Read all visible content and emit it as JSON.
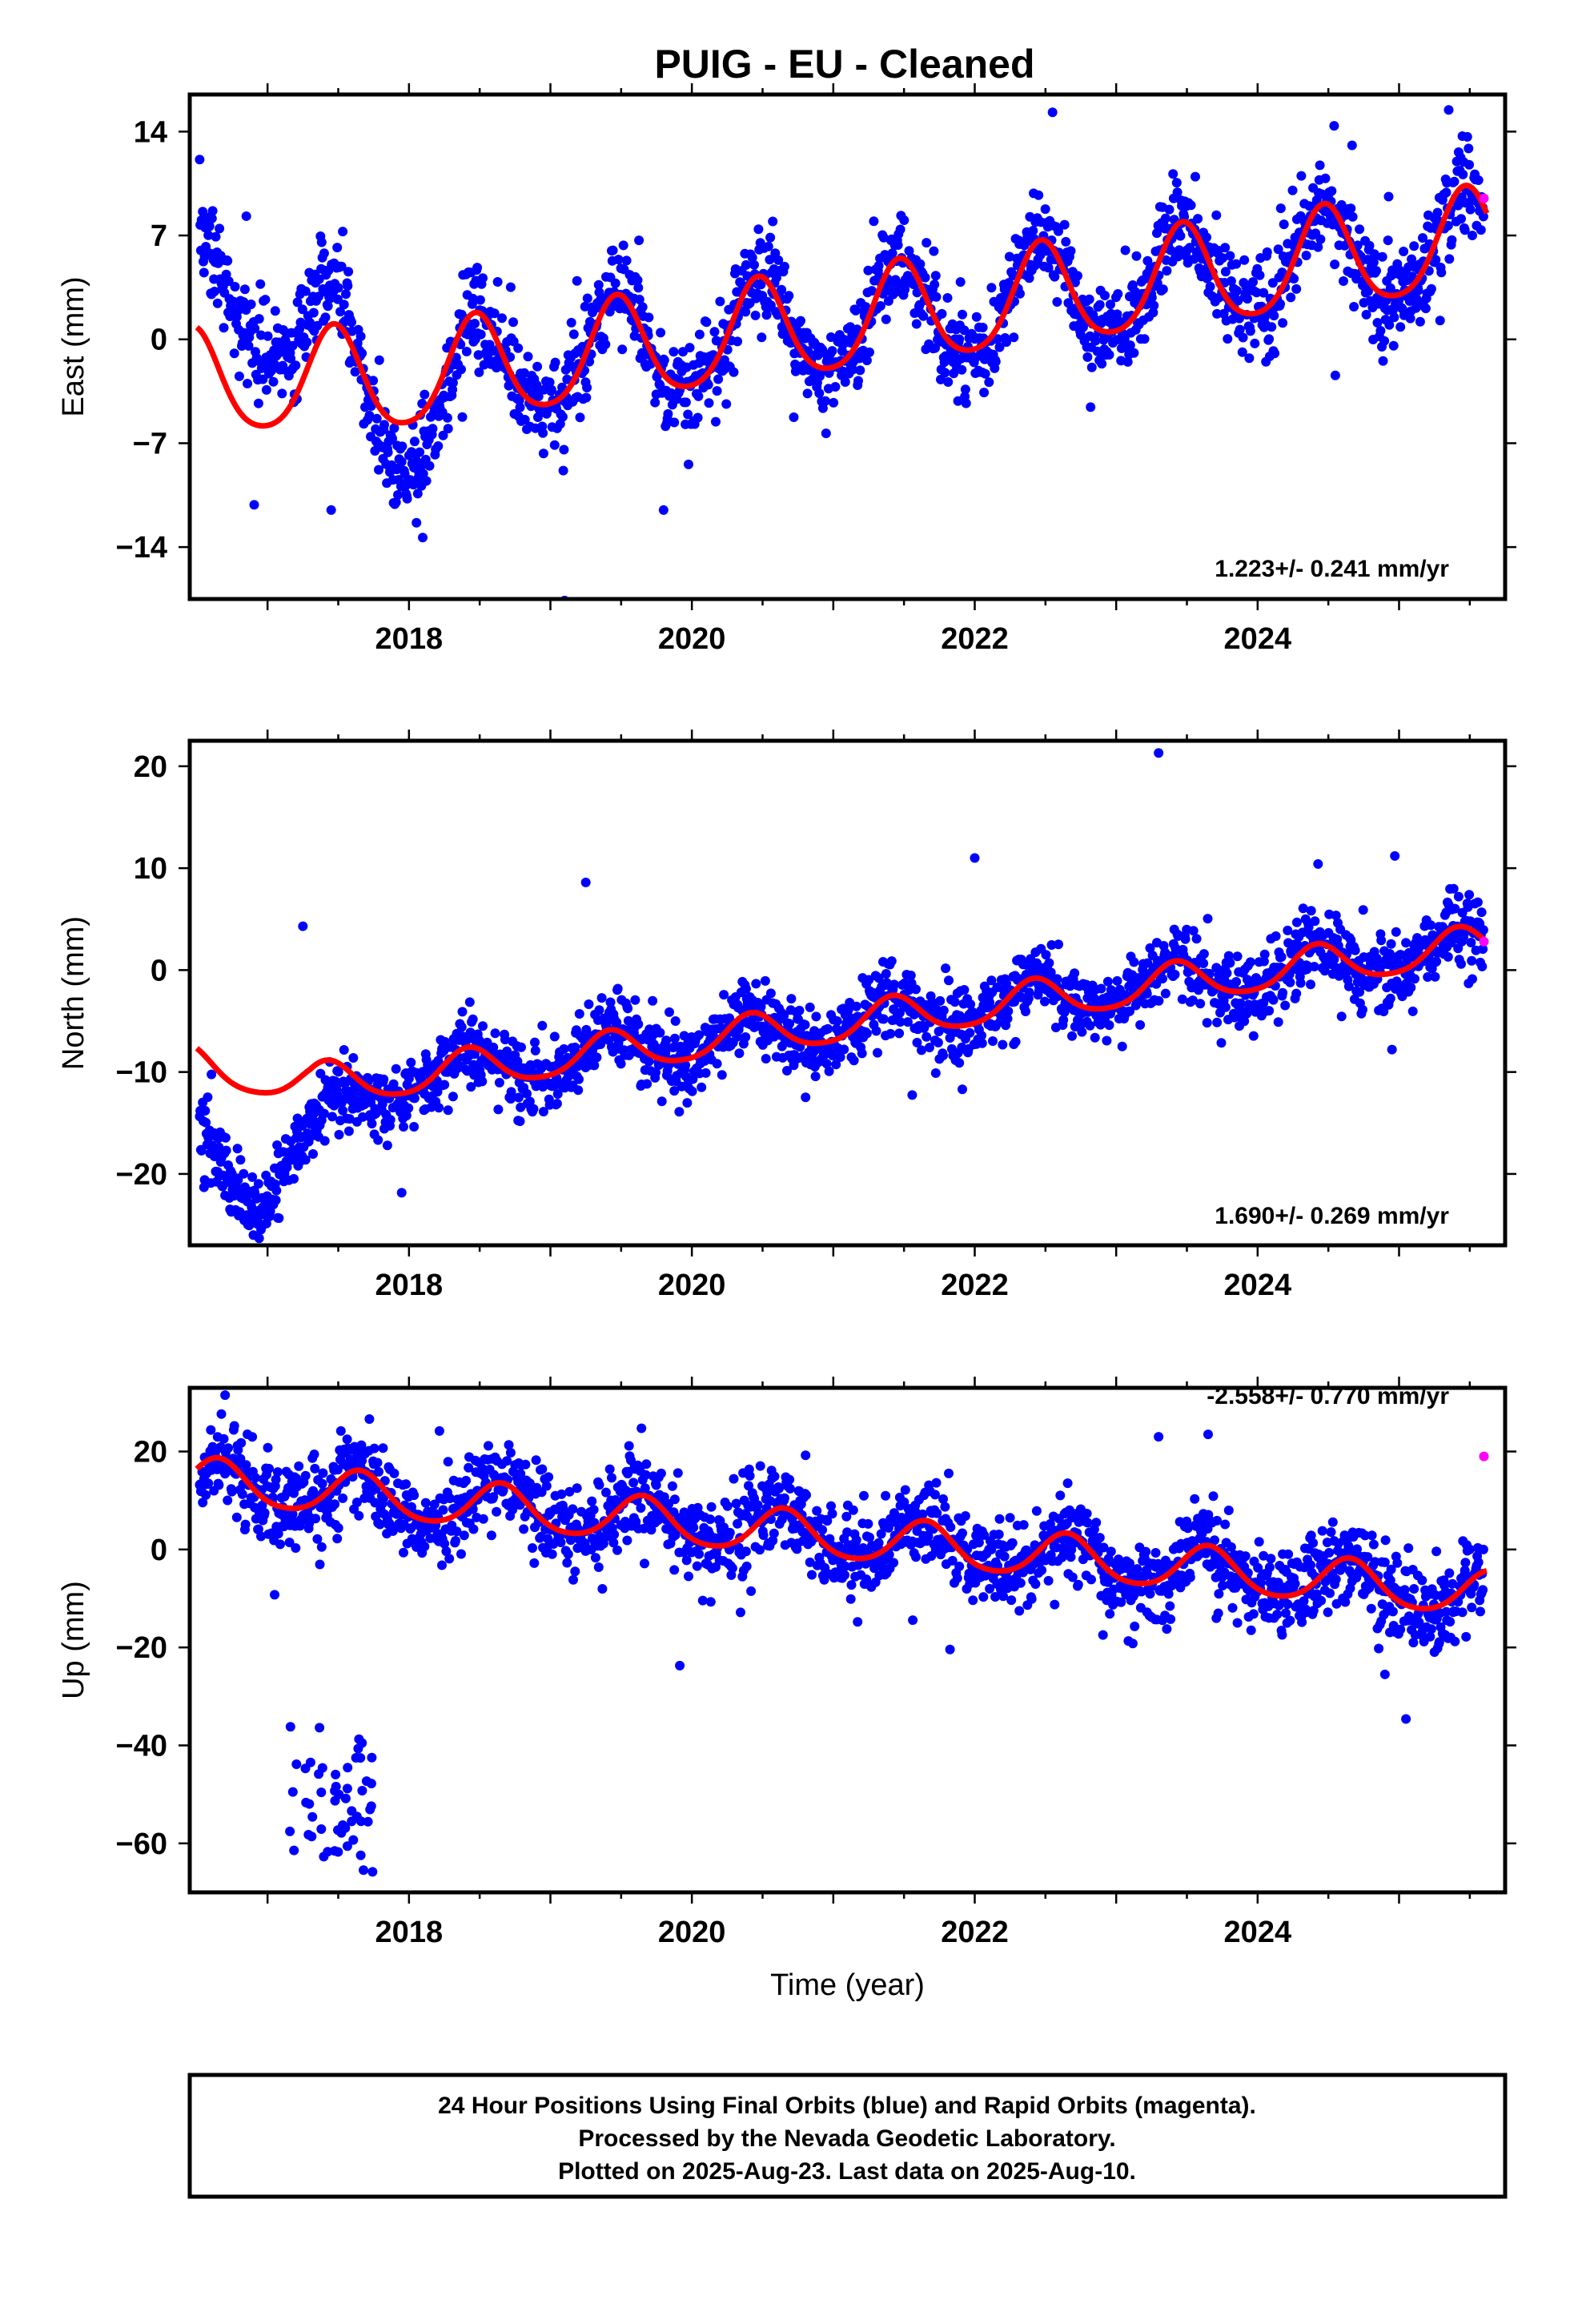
{
  "title": "PUIG  - EU - Cleaned",
  "colors": {
    "final_orbits": "#0000ff",
    "rapid_orbits": "#ff00ff",
    "model": "#ff0000",
    "frame": "#000000"
  },
  "chart_data": [
    {
      "type": "scatter",
      "component": "East",
      "ylabel": "East (mm)",
      "xlabel": "",
      "xlim": [
        2016.45,
        2025.75
      ],
      "ylim": [
        -17.5,
        16.5
      ],
      "yticks": [
        14,
        7,
        0,
        -7,
        -14
      ],
      "ytick_labels": [
        "14",
        "7",
        "0",
        "−7",
        "−14"
      ],
      "xticks": [
        2018,
        2020,
        2022,
        2024
      ],
      "xtick_labels": [
        "2018",
        "2020",
        "2022",
        "2024"
      ],
      "rate_label": "1.223+/- 0.241 mm/yr",
      "model": {
        "name": "fit",
        "offset": -4.5,
        "rate": 1.223,
        "annual_amp": 3.4,
        "annual_peak": 0.47,
        "semiannual_amp": 0.5,
        "start": 2016.5
      },
      "model_trend_extra": [
        [
          2016.5,
          1.5
        ],
        [
          2017.9,
          0.0
        ]
      ],
      "scatter_noise": 1.6,
      "scatter_offset": [
        [
          2016.5,
          7.5
        ],
        [
          2017.0,
          5.0
        ],
        [
          2017.5,
          2.5
        ],
        [
          2017.95,
          -4.0
        ],
        [
          2018.4,
          0.0
        ]
      ],
      "outliers": [
        {
          "x": 2019.1,
          "y": -17.6
        },
        {
          "x": 2022.55,
          "y": 15.3
        },
        {
          "x": 2016.85,
          "y": 8.3
        },
        {
          "x": 2017.45,
          "y": -11.5
        },
        {
          "x": 2019.8,
          "y": -11.5
        }
      ],
      "rapid_points": [
        {
          "x": 2025.6,
          "y": 9.5
        }
      ]
    },
    {
      "type": "scatter",
      "component": "North",
      "ylabel": "North (mm)",
      "xlabel": "",
      "xlim": [
        2016.45,
        2025.75
      ],
      "ylim": [
        -27,
        22.5
      ],
      "yticks": [
        20,
        10,
        0,
        -10,
        -20
      ],
      "ytick_labels": [
        "20",
        "10",
        "0",
        "−10",
        "−20"
      ],
      "xticks": [
        2018,
        2020,
        2022,
        2024
      ],
      "xtick_labels": [
        "2018",
        "2020",
        "2022",
        "2024"
      ],
      "rate_label": "1.690+/- 0.269 mm/yr",
      "model": {
        "name": "fit",
        "offset": -13.0,
        "rate": 1.69,
        "annual_amp": 1.9,
        "annual_peak": 0.42,
        "semiannual_amp": 0.3,
        "start": 2016.5
      },
      "model_trend_extra": [
        [
          2016.5,
          3.5
        ],
        [
          2017.3,
          0.5
        ],
        [
          2018.0,
          0.0
        ]
      ],
      "scatter_noise": 1.8,
      "scatter_offset": [
        [
          2016.5,
          -7.0
        ],
        [
          2016.95,
          -12.0
        ],
        [
          2017.2,
          -6.0
        ],
        [
          2017.6,
          -2.0
        ],
        [
          2018.0,
          0.0
        ]
      ],
      "outliers": [
        {
          "x": 2023.3,
          "y": 21.3
        },
        {
          "x": 2017.25,
          "y": 4.3
        },
        {
          "x": 2024.95,
          "y": -7.8
        },
        {
          "x": 2016.9,
          "y": -26.0
        },
        {
          "x": 2019.25,
          "y": 8.6
        },
        {
          "x": 2022.0,
          "y": 11.0
        },
        {
          "x": 2024.97,
          "y": 11.2
        }
      ],
      "rapid_points": [
        {
          "x": 2025.6,
          "y": 2.8
        }
      ]
    },
    {
      "type": "scatter",
      "component": "Up",
      "ylabel": "Up (mm)",
      "xlabel": "Time (year)",
      "xlim": [
        2016.45,
        2025.75
      ],
      "ylim": [
        -70,
        33
      ],
      "yticks": [
        20,
        0,
        -20,
        -40,
        -60
      ],
      "ytick_labels": [
        "20",
        "0",
        "−20",
        "−40",
        "−60"
      ],
      "xticks": [
        2018,
        2020,
        2022,
        2024
      ],
      "xtick_labels": [
        "2018",
        "2020",
        "2022",
        "2024"
      ],
      "rate_label": "-2.558+/- 0.770 mm/yr",
      "model": {
        "name": "fit",
        "offset": 14.0,
        "rate": -2.558,
        "annual_amp": 4.5,
        "annual_peak": 0.65,
        "semiannual_amp": 0.6,
        "start": 2016.5
      },
      "model_trend_extra": [
        [
          2016.5,
          0.0
        ],
        [
          2025.7,
          0.0
        ]
      ],
      "scatter_noise": 4.5,
      "scatter_offset": [
        [
          2016.5,
          0.0
        ],
        [
          2025.7,
          0.0
        ]
      ],
      "outliers": [
        {
          "x": 2023.65,
          "y": 23.5
        },
        {
          "x": 2016.7,
          "y": 31.5
        },
        {
          "x": 2024.9,
          "y": -25.5
        },
        {
          "x": 2023.3,
          "y": 23.0
        }
      ],
      "cluster": {
        "x_range": [
          2017.15,
          2017.75
        ],
        "y_center": -52,
        "y_spread": 9,
        "count": 55
      },
      "rapid_points": [
        {
          "x": 2025.6,
          "y": 19.0
        }
      ]
    }
  ],
  "footer": {
    "line1": "24 Hour Positions Using Final Orbits (blue) and Rapid Orbits (magenta).",
    "line2": "Processed by the Nevada Geodetic Laboratory.",
    "line3": "Plotted on 2025-Aug-23. Last data on 2025-Aug-10."
  }
}
